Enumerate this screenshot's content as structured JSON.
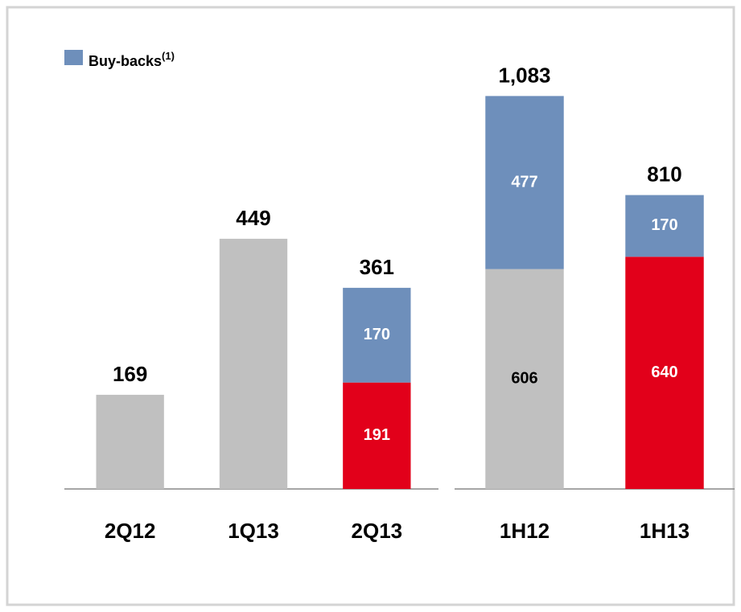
{
  "chart_data": [
    {
      "type": "bar",
      "stacked": true,
      "categories": [
        "2Q12",
        "1Q13",
        "2Q13"
      ],
      "series": [
        {
          "values": [
            169,
            449,
            191
          ],
          "colors": [
            "#c0c0c0",
            "#c0c0c0",
            "#e2001a"
          ]
        },
        {
          "name": "Buy-backs",
          "superscript": "(1)",
          "color": "#6e8fbb",
          "values": [
            null,
            null,
            170
          ]
        }
      ],
      "totals": [
        169,
        449,
        361
      ],
      "total_labels": [
        "169",
        "449",
        "361"
      ],
      "ylim": [
        0,
        700
      ]
    },
    {
      "type": "bar",
      "stacked": true,
      "categories": [
        "1H12",
        "1H13"
      ],
      "series": [
        {
          "values": [
            606,
            640
          ],
          "colors": [
            "#c0c0c0",
            "#e2001a"
          ]
        },
        {
          "color": "#6e8fbb",
          "values": [
            477,
            170
          ]
        }
      ],
      "totals": [
        1083,
        810
      ],
      "total_labels": [
        "1,083",
        "810"
      ],
      "ylim": [
        0,
        1075
      ]
    }
  ]
}
